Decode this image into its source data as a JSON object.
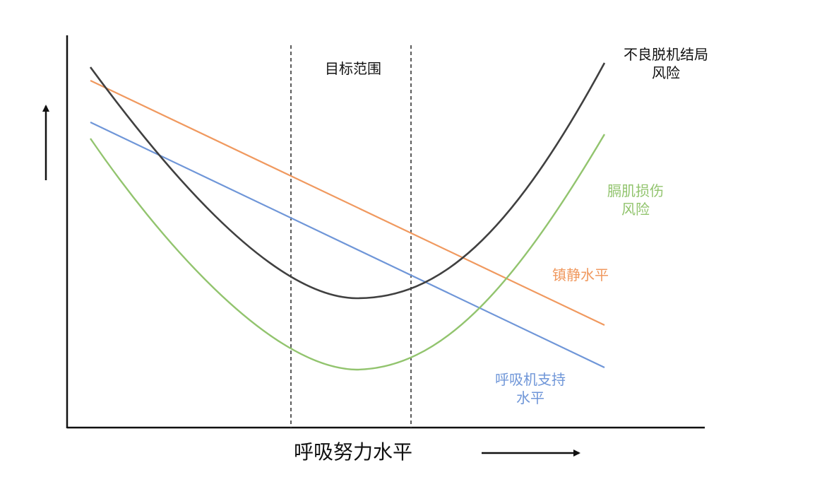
{
  "colors": {
    "axis": "#111111",
    "weaning_curve": "#404040",
    "diaphragm_curve": "#92C46E",
    "sedation_line": "#F0995F",
    "ventilator_line": "#6F96D8"
  },
  "target_range": {
    "label": "目标范围"
  },
  "x_axis": {
    "label": "呼吸努力水平"
  },
  "curves": {
    "weaning": {
      "label_line1": "不良脱机结局",
      "label_line2": "风险"
    },
    "diaphragm": {
      "label_line1": "膈肌损伤",
      "label_line2": "风险"
    },
    "sedation": {
      "label": "镇静水平"
    },
    "ventilator": {
      "label_line1": "呼吸机支持",
      "label_line2": "水平"
    }
  },
  "icons": {
    "y_arrow": "up-arrow-icon",
    "x_arrow": "right-arrow-icon"
  }
}
